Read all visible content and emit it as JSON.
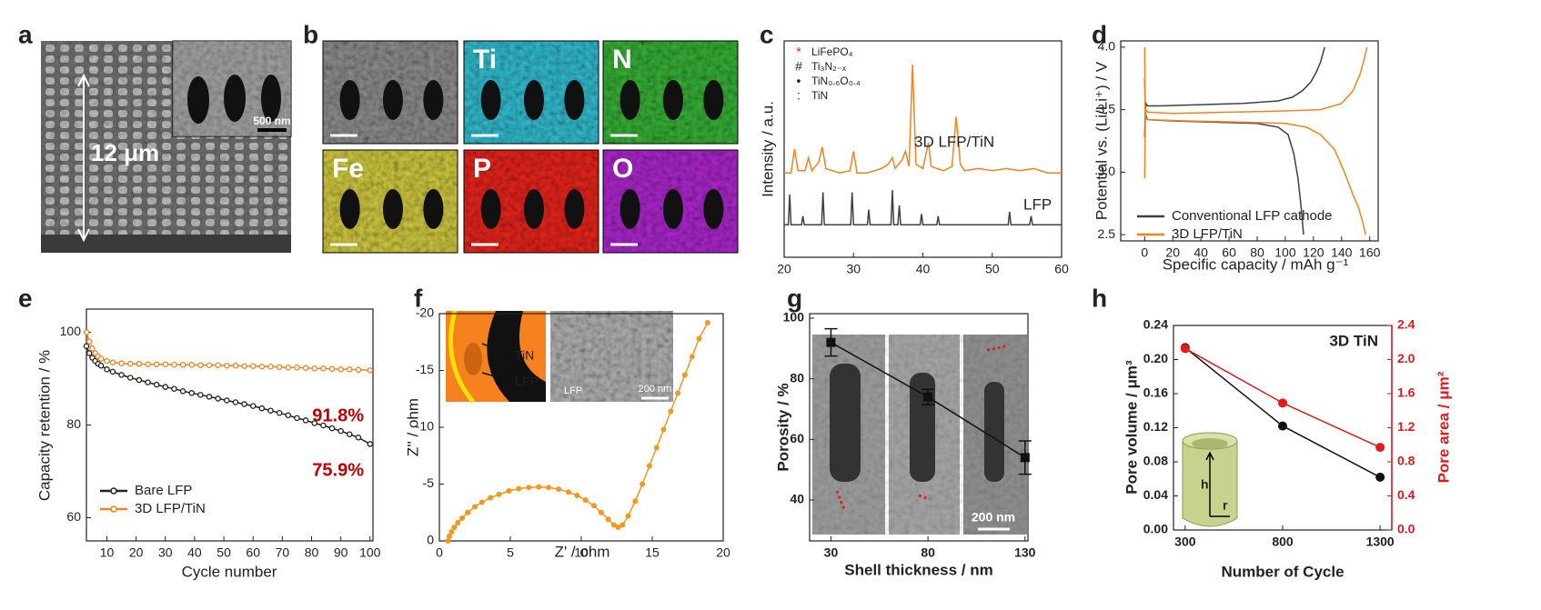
{
  "panel_labels": [
    "a",
    "b",
    "c",
    "d",
    "e",
    "f",
    "g",
    "h"
  ],
  "images": {
    "a_scale": "12 μm",
    "a_inset_scale": "500 nm",
    "b_maps": [
      "Ti",
      "N",
      "Fe",
      "P",
      "O"
    ],
    "f_inset_labels": [
      "TiN",
      "LFP",
      "LFP",
      "200 nm"
    ],
    "g_scale": "200 nm",
    "h_inset": [
      "h",
      "r"
    ]
  },
  "chart_data": [
    {
      "type": "line",
      "ylabel": "Intensity / a.u.",
      "xlim": [
        20,
        60
      ],
      "xticks": [
        20,
        30,
        40,
        50,
        60
      ],
      "ylim": [
        0,
        10
      ],
      "legend_symbols": [
        {
          "symbol": "*",
          "label": "LiFePO₄",
          "color": "#e31a1c"
        },
        {
          "symbol": "#",
          "label": "Ti₃N₂₋ₓ",
          "color": "#222222"
        },
        {
          "symbol": "•",
          "label": "TiN₀.₆O₀.₄",
          "color": "#222222"
        },
        {
          "symbol": ":",
          "label": "TiN",
          "color": "#222222"
        }
      ],
      "series_labels": true,
      "series": [
        {
          "name": "3D LFP/TiN",
          "color": "#f5821f",
          "x": [
            20,
            21,
            21.5,
            22,
            23,
            23.5,
            24,
            25,
            25.5,
            26,
            28,
            29.5,
            30,
            30.5,
            32,
            34,
            35,
            35.6,
            36,
            37,
            37.5,
            38,
            38.5,
            39,
            40,
            40.8,
            41.2,
            42,
            43,
            44.2,
            44.8,
            45.4,
            46,
            48,
            50,
            52,
            54,
            56,
            58,
            60
          ],
          "values": [
            3.9,
            3.9,
            5.0,
            4.0,
            4.0,
            4.6,
            4.0,
            4.4,
            5.1,
            4.1,
            3.9,
            4.0,
            4.9,
            3.9,
            3.9,
            4.1,
            4.3,
            4.6,
            4.1,
            4.5,
            4.9,
            4.2,
            8.9,
            4.3,
            4.1,
            5.3,
            4.2,
            4.1,
            4.0,
            4.2,
            6.5,
            4.3,
            4.0,
            4.1,
            4.0,
            4.1,
            4.0,
            4.1,
            3.9,
            3.9
          ]
        },
        {
          "name": "LFP",
          "color": "#404040",
          "x": [
            20,
            20.6,
            20.8,
            21,
            22.5,
            22.7,
            22.9,
            25.4,
            25.6,
            25.8,
            29.6,
            29.8,
            30,
            32,
            32.2,
            32.4,
            35.4,
            35.6,
            35.8,
            36.4,
            36.6,
            36.8,
            39.6,
            39.8,
            40,
            42,
            42.2,
            42.4,
            52.3,
            52.5,
            52.7,
            55.4,
            55.6,
            55.8,
            60
          ],
          "values": [
            1.5,
            1.5,
            2.9,
            1.5,
            1.5,
            1.9,
            1.5,
            1.5,
            3.0,
            1.5,
            1.5,
            3.0,
            1.5,
            1.5,
            2.2,
            1.5,
            1.5,
            3.1,
            1.5,
            1.5,
            2.4,
            1.5,
            1.5,
            2.0,
            1.5,
            1.5,
            1.9,
            1.5,
            1.5,
            2.1,
            1.5,
            1.5,
            1.9,
            1.5,
            1.5
          ]
        }
      ]
    },
    {
      "type": "line",
      "xlabel": "Specific capacity / mAh g⁻¹",
      "ylabel": "Potential vs. (Li/Li⁺) / V",
      "xlim": [
        -17,
        166
      ],
      "xticks": [
        0,
        20,
        40,
        60,
        80,
        100,
        120,
        140,
        160
      ],
      "ylim": [
        2.45,
        4.05
      ],
      "yticks": [
        {
          "value": 4.0,
          "label": "4.0"
        },
        3.5,
        {
          "value": 3.0,
          "label": "3.0"
        },
        2.5
      ],
      "legend": "lower left",
      "series": [
        {
          "name": "Conventional LFP cathode",
          "color": "#404040",
          "x": [
            0,
            0.5,
            1,
            2,
            10,
            40,
            70,
            95,
            105,
            112,
            118,
            122,
            125,
            128,
            null,
            0,
            0.5,
            1,
            2,
            20,
            50,
            80,
            95,
            102,
            106,
            109,
            111,
            113
          ],
          "values": [
            3.28,
            3.5,
            3.55,
            3.53,
            3.53,
            3.54,
            3.55,
            3.57,
            3.6,
            3.65,
            3.72,
            3.8,
            3.88,
            4.0,
            null,
            3.75,
            3.5,
            3.45,
            3.42,
            3.41,
            3.4,
            3.39,
            3.36,
            3.3,
            3.15,
            2.95,
            2.75,
            2.5
          ]
        },
        {
          "name": "3D LFP/TiN",
          "color": "#f5821f",
          "x": [
            0,
            0.5,
            1,
            2,
            20,
            60,
            100,
            125,
            140,
            148,
            153,
            156,
            158,
            null,
            0,
            0.3,
            0.6,
            1,
            2,
            30,
            70,
            100,
            115,
            125,
            135,
            142,
            148,
            152,
            155,
            157
          ],
          "values": [
            2.95,
            3.45,
            3.5,
            3.48,
            3.47,
            3.48,
            3.49,
            3.5,
            3.55,
            3.65,
            3.78,
            3.9,
            4.0,
            null,
            4.0,
            3.5,
            3.45,
            3.43,
            3.42,
            3.41,
            3.4,
            3.39,
            3.36,
            3.3,
            3.18,
            3.0,
            2.82,
            2.72,
            2.6,
            2.5
          ]
        }
      ]
    },
    {
      "type": "line",
      "xlabel": "Cycle number",
      "ylabel": "Capacity retention / %",
      "xlim": [
        3,
        101
      ],
      "xticks": [
        10,
        20,
        30,
        40,
        50,
        60,
        70,
        80,
        90,
        100
      ],
      "ylim": [
        55,
        105
      ],
      "yticks": [
        60,
        80,
        100
      ],
      "legend": "lower left",
      "annotations": [
        "91.8%",
        "75.9%"
      ],
      "annotation_color": "#c00000",
      "x": [
        3,
        4,
        5,
        6,
        7,
        8,
        10,
        12,
        15,
        18,
        21,
        24,
        27,
        30,
        33,
        36,
        39,
        42,
        45,
        48,
        51,
        54,
        57,
        60,
        63,
        66,
        69,
        72,
        75,
        78,
        81,
        84,
        87,
        90,
        93,
        96,
        100
      ],
      "series": [
        {
          "name": "Bare LFP",
          "color": "#222222",
          "marker": "open-circle",
          "values": [
            97,
            95.5,
            94.5,
            93.8,
            93.2,
            92.8,
            92,
            91.5,
            90.8,
            90.2,
            89.7,
            89.2,
            88.7,
            88.2,
            87.8,
            87.3,
            86.9,
            86.5,
            86.1,
            85.7,
            85.3,
            84.9,
            84.5,
            84.1,
            83.6,
            83.1,
            82.6,
            82.1,
            81.5,
            81,
            80.4,
            79.9,
            79.3,
            78.7,
            78,
            77.3,
            75.9
          ]
        },
        {
          "name": "3D LFP/TiN",
          "color": "#f5821f",
          "marker": "open-circle",
          "values": [
            100,
            98,
            96.5,
            95.5,
            94.8,
            94.3,
            93.8,
            93.5,
            93.3,
            93.2,
            93.2,
            93.1,
            93.1,
            93.1,
            93,
            93,
            93,
            92.9,
            92.9,
            92.9,
            92.8,
            92.8,
            92.7,
            92.7,
            92.6,
            92.6,
            92.5,
            92.4,
            92.4,
            92.3,
            92.2,
            92.2,
            92.1,
            92,
            92,
            91.9,
            91.8
          ]
        }
      ]
    },
    {
      "type": "line",
      "xlabel": "Z' / ohm",
      "ylabel": "Z'' / ohm",
      "xlim": [
        0,
        20
      ],
      "xticks": [
        0,
        5,
        10,
        15,
        20
      ],
      "ylim": [
        0,
        -20
      ],
      "yticks": [
        0,
        -5,
        -10,
        -15,
        -20
      ],
      "series": [
        {
          "color": "#f5961f",
          "marker": "circle",
          "x": [
            0.6,
            0.7,
            0.85,
            1.05,
            1.3,
            1.6,
            2,
            2.5,
            3,
            3.6,
            4.2,
            4.9,
            5.6,
            6.3,
            7,
            7.7,
            8.4,
            9.1,
            9.7,
            10.3,
            10.9,
            11.4,
            11.9,
            12.3,
            12.6,
            12.9,
            13.3,
            13.8,
            14.3,
            14.8,
            15.3,
            15.8,
            16.3,
            16.8,
            17.3,
            17.8,
            18.3,
            18.9
          ],
          "values": [
            0,
            -0.4,
            -0.8,
            -1.2,
            -1.6,
            -2,
            -2.5,
            -3,
            -3.4,
            -3.8,
            -4.1,
            -4.4,
            -4.6,
            -4.7,
            -4.75,
            -4.7,
            -4.55,
            -4.3,
            -4,
            -3.6,
            -3.1,
            -2.5,
            -1.9,
            -1.4,
            -1.2,
            -1.4,
            -2.2,
            -3.5,
            -5,
            -6.6,
            -8.2,
            -9.8,
            -11.4,
            -13,
            -14.6,
            -16.2,
            -17.8,
            -19.2
          ]
        }
      ]
    },
    {
      "type": "line",
      "xlabel": "Shell thickness / nm",
      "ylabel": "Porosity / %",
      "xlim": [
        19,
        131.5
      ],
      "xticks": [
        30,
        80,
        130
      ],
      "ylim": [
        26.5,
        101.5
      ],
      "yticks": [
        40,
        60,
        80,
        100
      ],
      "x": [
        30,
        80,
        130
      ],
      "series": [
        {
          "color": "#111111",
          "marker": "square",
          "values": [
            92,
            74,
            54
          ],
          "errors": [
            4.5,
            2.5,
            5.5
          ]
        }
      ]
    },
    {
      "type": "line",
      "title": "3D TiN",
      "xlabel": "Number of Cycle",
      "ylabel": "Pore volume / μm³",
      "y2label": "Pore area / μm²",
      "xlim": [
        240,
        1360
      ],
      "xticks": [
        300,
        800,
        1300
      ],
      "ylim": [
        0,
        0.24
      ],
      "yticks": [
        {
          "value": 0,
          "label": "0.00"
        },
        0.04,
        0.08,
        0.12,
        0.16,
        {
          "value": 0.2,
          "label": "0.20"
        },
        0.24
      ],
      "y2lim": [
        0,
        2.4
      ],
      "y2ticks": [
        {
          "value": 0,
          "label": "0.0"
        },
        0.4,
        0.8,
        1.2,
        1.6,
        {
          "value": 2,
          "label": "2.0"
        },
        2.4
      ],
      "x": [
        300,
        800,
        1300
      ],
      "series": [
        {
          "color": "#111111",
          "marker": "circle",
          "values": [
            0.214,
            0.122,
            0.062
          ]
        },
        {
          "color": "#e31a1c",
          "marker": "circle",
          "axis": "y2",
          "values": [
            2.13,
            1.49,
            0.97
          ]
        }
      ]
    }
  ]
}
